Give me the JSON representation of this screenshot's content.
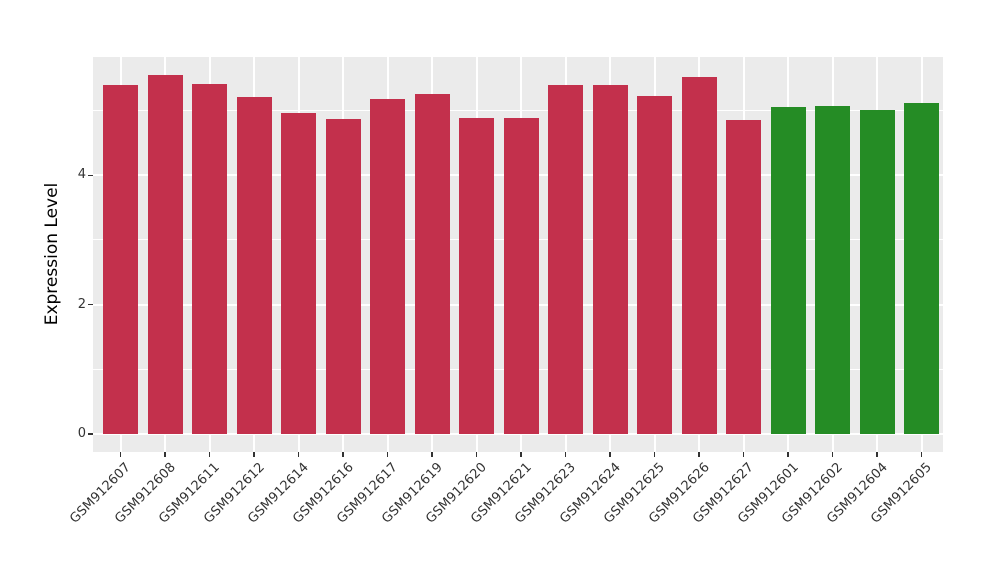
{
  "chart_data": {
    "type": "bar",
    "ylabel": "Expression Level",
    "xlabel": "",
    "categories": [
      "GSM912607",
      "GSM912608",
      "GSM912611",
      "GSM912612",
      "GSM912614",
      "GSM912616",
      "GSM912617",
      "GSM912619",
      "GSM912620",
      "GSM912621",
      "GSM912623",
      "GSM912624",
      "GSM912625",
      "GSM912626",
      "GSM912627",
      "GSM912601",
      "GSM912602",
      "GSM912604",
      "GSM912605"
    ],
    "values": [
      5.39,
      5.55,
      5.41,
      5.21,
      4.97,
      4.87,
      5.18,
      5.26,
      4.89,
      4.88,
      5.4,
      5.39,
      5.22,
      5.52,
      4.85,
      5.05,
      5.07,
      5.01,
      5.12
    ],
    "bar_groups": [
      "red",
      "red",
      "red",
      "red",
      "red",
      "red",
      "red",
      "red",
      "red",
      "red",
      "red",
      "red",
      "red",
      "red",
      "red",
      "green",
      "green",
      "green",
      "green"
    ],
    "colors": {
      "red": "#C3304C",
      "green": "#258C25"
    },
    "y_major_ticks": [
      0,
      2,
      4
    ],
    "y_minor_gridlines": [
      1,
      3,
      5
    ],
    "ylim": [
      -0.28,
      5.83
    ],
    "grid": true,
    "legend": "none",
    "panel_background": "#EBEBEB",
    "gridline_color": "#FFFFFF",
    "axis_text_color": "#333333"
  }
}
